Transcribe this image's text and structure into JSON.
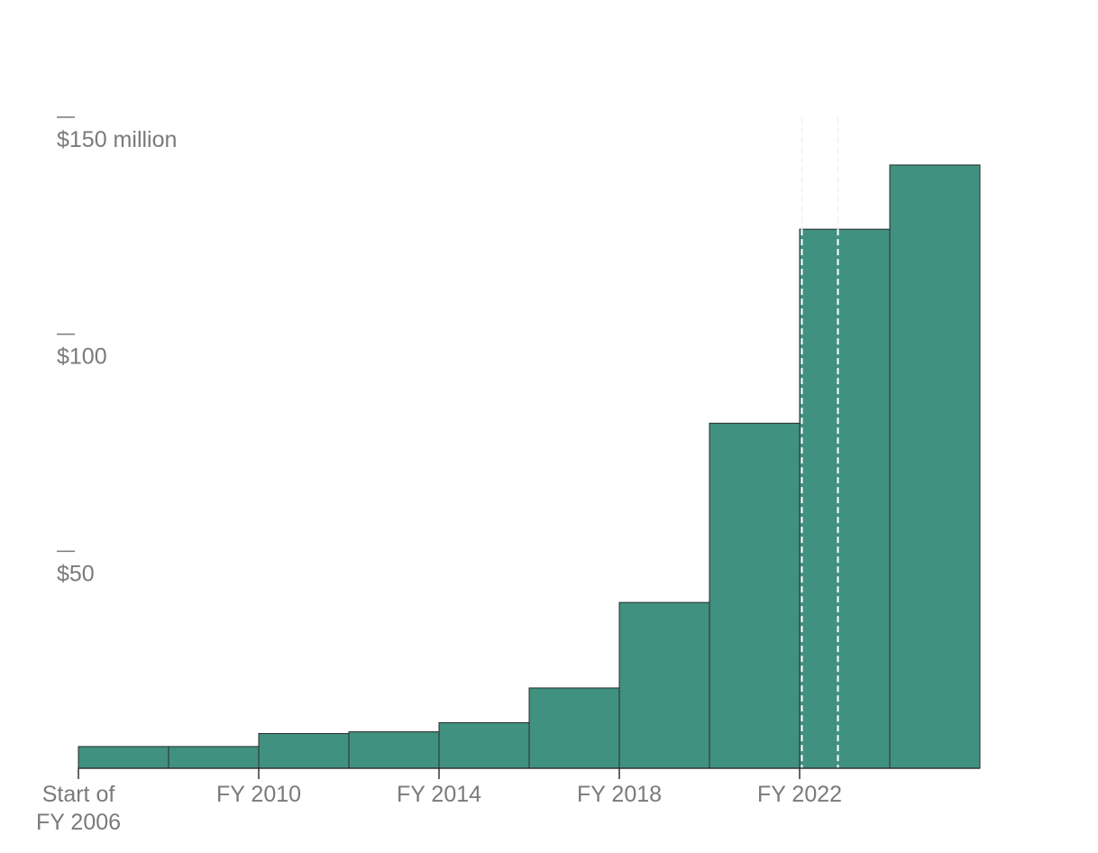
{
  "chart_data": {
    "type": "bar",
    "title": "",
    "xlabel": "",
    "ylabel": "",
    "bar_color": "#40917f",
    "ylim": [
      0,
      150
    ],
    "y_ticks": [
      {
        "value": 50,
        "label": "$50"
      },
      {
        "value": 100,
        "label": "$100"
      },
      {
        "value": 150,
        "label": "$150 million"
      }
    ],
    "x_ticks": [
      {
        "year": 2006,
        "label": [
          "Start of",
          "FY 2006"
        ]
      },
      {
        "year": 2010,
        "label": [
          "FY 2010"
        ]
      },
      {
        "year": 2014,
        "label": [
          "FY 2014"
        ]
      },
      {
        "year": 2018,
        "label": [
          "FY 2018"
        ]
      },
      {
        "year": 2022,
        "label": [
          "FY 2022"
        ]
      }
    ],
    "bars": [
      {
        "start": 2006,
        "end": 2008,
        "value": 5
      },
      {
        "start": 2008,
        "end": 2010,
        "value": 5
      },
      {
        "start": 2010,
        "end": 2012,
        "value": 8
      },
      {
        "start": 2012,
        "end": 2014,
        "value": 8.4
      },
      {
        "start": 2014,
        "end": 2016,
        "value": 10.5
      },
      {
        "start": 2016,
        "end": 2018,
        "value": 18.5
      },
      {
        "start": 2018,
        "end": 2020,
        "value": 38.2
      },
      {
        "start": 2020,
        "end": 2022,
        "value": 79.5
      },
      {
        "start": 2022,
        "end": 2024,
        "value": 124.2
      },
      {
        "start": 2024,
        "end": 2026,
        "value": 139
      }
    ],
    "markers": [
      {
        "year": 2022.05
      },
      {
        "year": 2022.85
      }
    ]
  }
}
